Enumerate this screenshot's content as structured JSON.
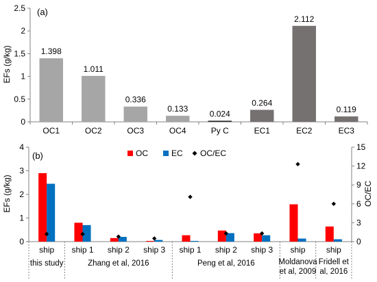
{
  "chart_data": [
    {
      "type": "bar",
      "panel_label": "(a)",
      "ylabel": "EFs (g/kg)",
      "ylim": [
        0,
        2.5
      ],
      "yticks": [
        "0",
        "0.5",
        "1",
        "1.5",
        "2",
        "2.5"
      ],
      "categories": [
        "OC1",
        "OC2",
        "OC3",
        "OC4",
        "Py C",
        "EC1",
        "EC2",
        "EC3"
      ],
      "values": [
        1.398,
        1.011,
        0.336,
        0.133,
        0.024,
        0.264,
        2.112,
        0.119
      ],
      "data_labels": [
        "1.398",
        "1.011",
        "0.336",
        "0.133",
        "0.024",
        "0.264",
        "2.112",
        "0.119"
      ],
      "colors": [
        "#a6a6a6",
        "#a6a6a6",
        "#a6a6a6",
        "#a6a6a6",
        "#262626",
        "#767171",
        "#767171",
        "#767171"
      ],
      "grid": false
    },
    {
      "type": "bar",
      "panel_label": "(b)",
      "ylabel": "EFs (g/kg)",
      "y2label": "OC/EC",
      "ylim": [
        0,
        4
      ],
      "y2lim": [
        0,
        15
      ],
      "yticks": [
        "0",
        "1",
        "2",
        "3",
        "4"
      ],
      "y2ticks": [
        "0",
        "3",
        "6",
        "9",
        "12",
        "15"
      ],
      "legend_position": "top-center",
      "categories": [
        "ship",
        "ship 1",
        "ship 2",
        "ship 3",
        "ship 1",
        "ship 2",
        "ship 3",
        "ship",
        "ship"
      ],
      "groups": [
        {
          "label": "this study",
          "span": 1
        },
        {
          "label": "Zhang et al, 2016",
          "span": 3
        },
        {
          "label": "Peng et al, 2016",
          "span": 3
        },
        {
          "label": "Moldanova et al, 2009",
          "span": 1
        },
        {
          "label": "Fridell et al, 2016",
          "span": 1
        }
      ],
      "series": [
        {
          "name": "OC",
          "color": "#ff0000",
          "axis": "left",
          "kind": "bar",
          "values": [
            2.9,
            0.8,
            0.15,
            0.03,
            0.27,
            0.47,
            0.35,
            1.58,
            0.64
          ]
        },
        {
          "name": "EC",
          "color": "#0070c0",
          "axis": "left",
          "kind": "bar",
          "values": [
            2.45,
            0.7,
            0.2,
            0.07,
            0.03,
            0.36,
            0.27,
            0.13,
            0.1
          ]
        },
        {
          "name": "OC/EC",
          "color": "#000000",
          "axis": "right",
          "kind": "marker",
          "values": [
            1.2,
            1.2,
            0.8,
            0.5,
            7.1,
            1.3,
            1.3,
            12.3,
            6.0
          ]
        }
      ],
      "grid": false
    }
  ]
}
